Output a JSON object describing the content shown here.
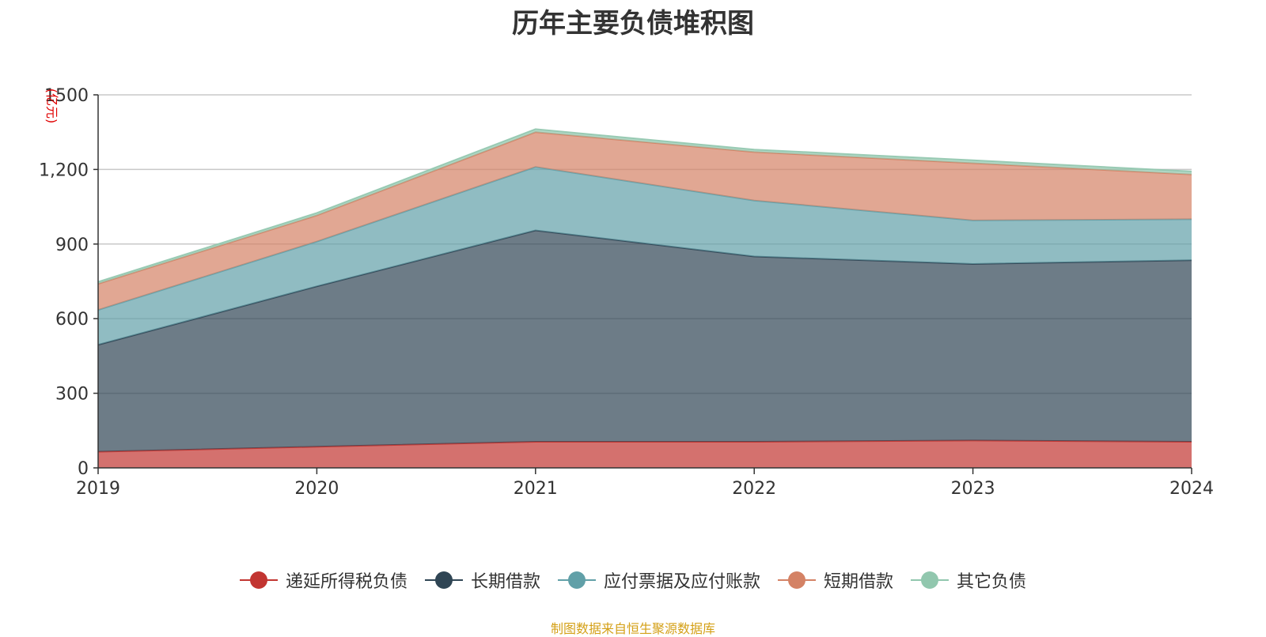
{
  "chart_data": {
    "type": "area",
    "stacked": true,
    "title": "历年主要负债堆积图",
    "ylabel": "(亿元)",
    "xlabel": "",
    "x": [
      "2019",
      "2020",
      "2021",
      "2022",
      "2023",
      "2024"
    ],
    "ylim": [
      0,
      1500
    ],
    "yticks": [
      0,
      300,
      600,
      900,
      1200,
      1500
    ],
    "ytick_labels": [
      "0",
      "300",
      "600",
      "900",
      "1,200",
      "1500"
    ],
    "grid": true,
    "legend_position": "bottom",
    "series": [
      {
        "name": "递延所得税负债",
        "color": "#c23531",
        "values": [
          65,
          85,
          105,
          105,
          110,
          105
        ]
      },
      {
        "name": "长期借款",
        "color": "#2f4554",
        "values": [
          430,
          645,
          850,
          745,
          710,
          730
        ]
      },
      {
        "name": "应付票据及应付账款",
        "color": "#61a0a8",
        "values": [
          140,
          180,
          255,
          225,
          175,
          165
        ]
      },
      {
        "name": "短期借款",
        "color": "#d48265",
        "values": [
          105,
          105,
          140,
          195,
          230,
          180
        ]
      },
      {
        "name": "其它负债",
        "color": "#91c7ae",
        "values": [
          8,
          10,
          12,
          10,
          12,
          12
        ]
      }
    ]
  },
  "source_text": "制图数据来自恒生聚源数据库"
}
